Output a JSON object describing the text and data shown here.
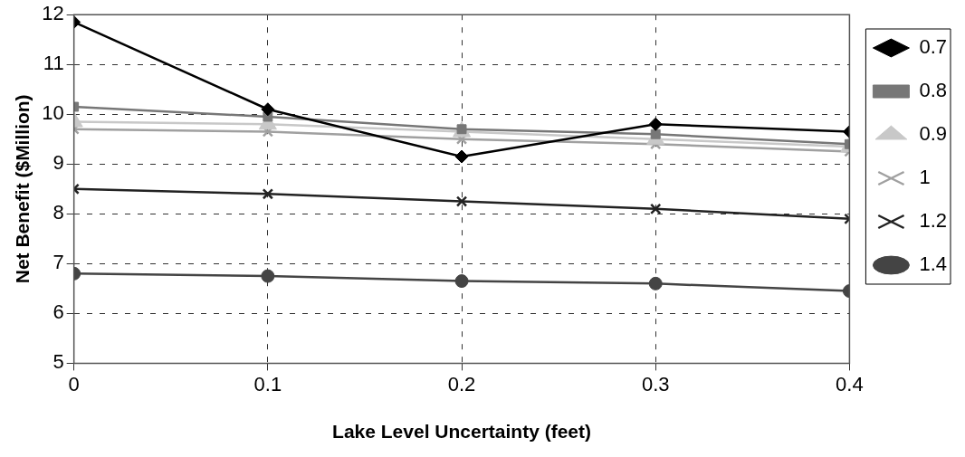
{
  "chart_data": {
    "type": "line",
    "xlabel": "Lake Level Uncertainty (feet)",
    "ylabel": "Net Benefit ($Million)",
    "x": [
      0,
      0.1,
      0.2,
      0.3,
      0.4
    ],
    "series": [
      {
        "name": "0.7",
        "color": "#000000",
        "marker": "diamond",
        "values": [
          11.85,
          10.1,
          9.15,
          9.8,
          9.65
        ]
      },
      {
        "name": "0.8",
        "color": "#777777",
        "marker": "square",
        "values": [
          10.15,
          9.95,
          9.7,
          9.6,
          9.4
        ]
      },
      {
        "name": "0.9",
        "color": "#c8c8c8",
        "marker": "triangle",
        "values": [
          9.85,
          9.8,
          9.65,
          9.5,
          9.35
        ]
      },
      {
        "name": "1",
        "color": "#a0a0a0",
        "marker": "cross",
        "values": [
          9.7,
          9.65,
          9.5,
          9.4,
          9.25
        ]
      },
      {
        "name": "1.2",
        "color": "#222222",
        "marker": "cross",
        "values": [
          8.5,
          8.4,
          8.25,
          8.1,
          7.9
        ]
      },
      {
        "name": "1.4",
        "color": "#444444",
        "marker": "circle",
        "values": [
          6.8,
          6.75,
          6.65,
          6.6,
          6.45
        ]
      }
    ],
    "xlim": [
      0,
      0.4
    ],
    "xticks": [
      0,
      0.1,
      0.2,
      0.3,
      0.4
    ],
    "ylim": [
      5,
      12
    ],
    "yticks": [
      5,
      6,
      7,
      8,
      9,
      10,
      11,
      12
    ],
    "grid": true,
    "legend": "right",
    "line_style": "solid"
  }
}
